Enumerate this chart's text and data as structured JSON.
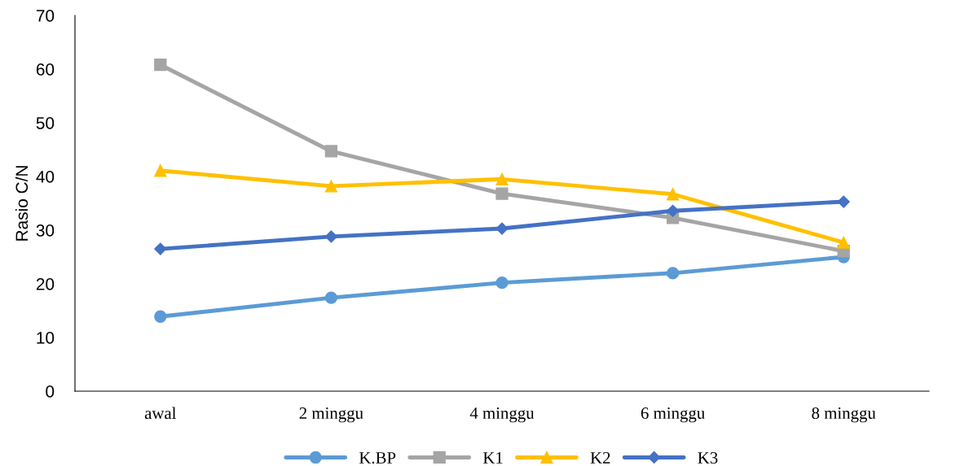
{
  "chart_data": {
    "type": "line",
    "ylabel": "Rasio C/N",
    "categories": [
      "awal",
      "2 minggu",
      "4 minggu",
      "6 minggu",
      "8 minggu"
    ],
    "series": [
      {
        "name": "K.BP",
        "color": "#5b9bd5",
        "marker": "circle",
        "values": [
          13.9,
          17.4,
          20.2,
          22.0,
          25.0
        ]
      },
      {
        "name": "K1",
        "color": "#a5a5a5",
        "marker": "square",
        "values": [
          60.8,
          44.7,
          36.8,
          32.3,
          26.1
        ]
      },
      {
        "name": "K2",
        "color": "#ffc000",
        "marker": "triangle",
        "values": [
          41.1,
          38.2,
          39.5,
          36.7,
          27.7
        ]
      },
      {
        "name": "K3",
        "color": "#4472c4",
        "marker": "diamond",
        "values": [
          26.5,
          28.8,
          30.3,
          33.6,
          35.3
        ]
      }
    ],
    "ylim": [
      0,
      70
    ],
    "yticks": [
      0,
      10,
      20,
      30,
      40,
      50,
      60,
      70
    ],
    "grid": false,
    "legend": "bottom",
    "line_style": "solid"
  }
}
